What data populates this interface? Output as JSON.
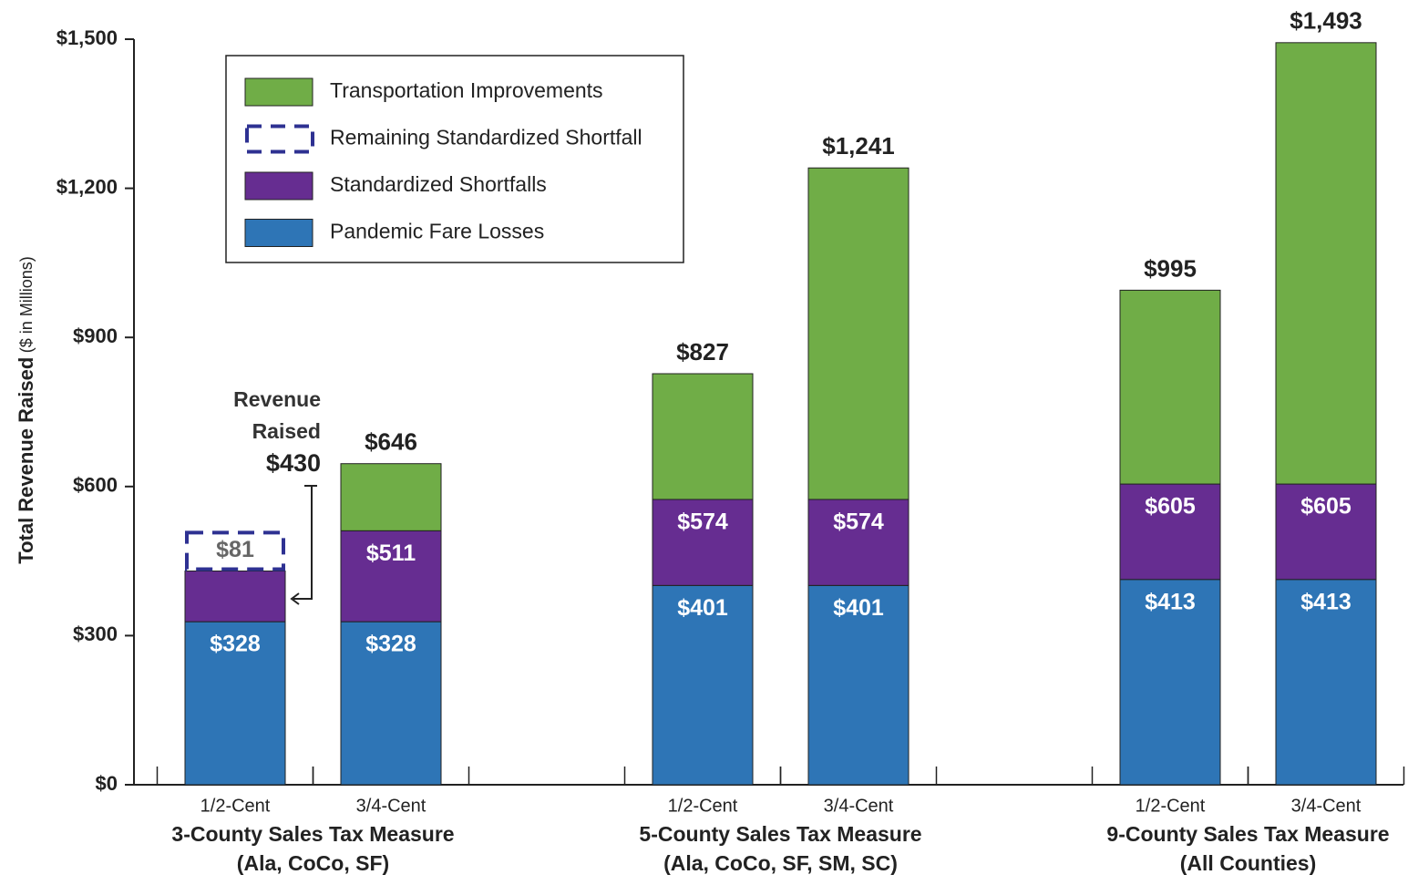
{
  "chart_data": {
    "type": "stacked_bar",
    "y_label": "Total Revenue Raised",
    "y_label_unit": "($ in Millions)",
    "categories": [
      "1/2-Cent",
      "3/4-Cent",
      "1/2-Cent",
      "3/4-Cent",
      "1/2-Cent",
      "3/4-Cent"
    ],
    "groups": [
      [
        "3-County Sales Tax Measure",
        "(Ala, CoCo, SF)"
      ],
      [
        "5-County Sales Tax Measure",
        "(Ala, CoCo, SF, SM, SC)"
      ],
      [
        "9-County Sales Tax Measure",
        "(All Counties)"
      ]
    ],
    "series": [
      {
        "name": "Pandemic Fare Losses",
        "color": "#2e75b6",
        "values": [
          328,
          328,
          401,
          401,
          413,
          413
        ],
        "value_labels": [
          "$328",
          "$328",
          "$401",
          "$401",
          "$413",
          "$413"
        ]
      },
      {
        "name": "Standardized Shortfalls",
        "color": "#662d91",
        "values": [
          102,
          183,
          173,
          173,
          192,
          192
        ],
        "cumulative_labels": [
          null,
          "$511",
          "$574",
          "$574",
          "$605",
          "$605"
        ]
      },
      {
        "name": "Remaining Standardized Shortfall",
        "color": "#2e3192",
        "dashed": true,
        "values": [
          81,
          null,
          null,
          null,
          null,
          null
        ],
        "value_labels": [
          "$81",
          null,
          null,
          null,
          null,
          null
        ]
      },
      {
        "name": "Transportation Improvements",
        "color": "#70ad47",
        "values": [
          null,
          135,
          253,
          667,
          390,
          888
        ]
      }
    ],
    "total_labels": [
      null,
      "$646",
      "$827",
      "$1,241",
      "$995",
      "$1,493"
    ],
    "annotation": [
      "Revenue",
      "Raised",
      "$430"
    ],
    "ylim": [
      0,
      1500
    ],
    "yticks": [
      {
        "value": 0,
        "label": "$0"
      },
      {
        "value": 300,
        "label": "$300"
      },
      {
        "value": 600,
        "label": "$600"
      },
      {
        "value": 900,
        "label": "$900"
      },
      {
        "value": 1200,
        "label": "$1,200"
      },
      {
        "value": 1500,
        "label": "$1,500"
      }
    ],
    "legend": "upper-left"
  }
}
